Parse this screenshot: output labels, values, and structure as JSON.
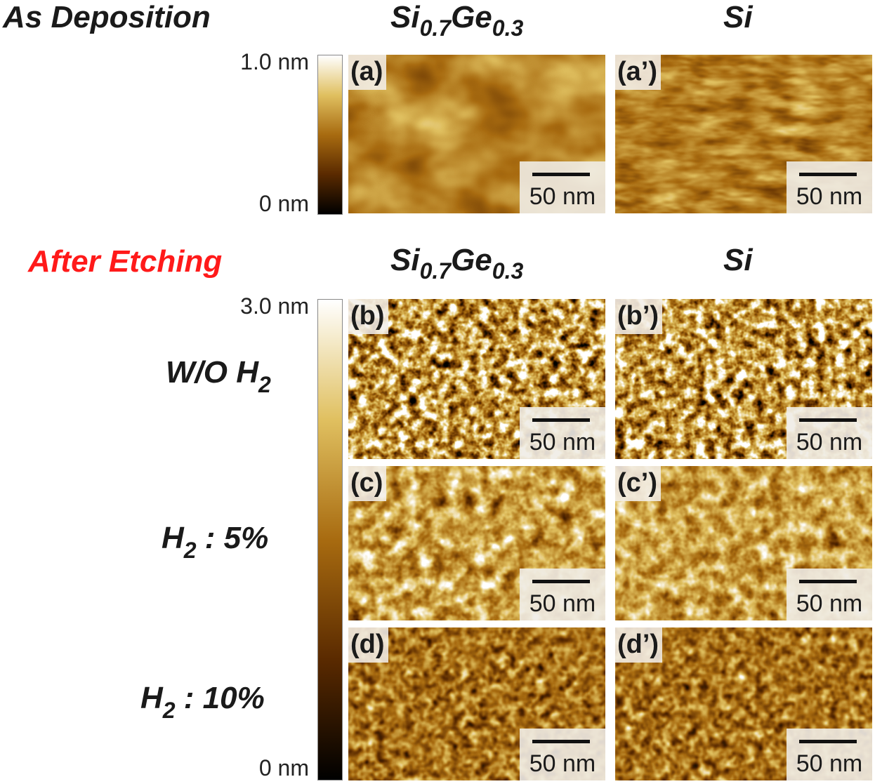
{
  "headings": {
    "as_deposition": "As Deposition",
    "after_etching": "After Etching",
    "after_etching_color": "#ff1a1a"
  },
  "columns": {
    "sige_base": "Si",
    "sige_sub1": "0.7",
    "sige_mid": "Ge",
    "sige_sub2": "0.3",
    "si": "Si"
  },
  "colorbars": {
    "top": {
      "max_label": "1.0 nm",
      "min_label": "0 nm"
    },
    "bottom": {
      "max_label": "3.0 nm",
      "min_label": "0 nm"
    },
    "colormap": [
      "#000000",
      "#5a2a00",
      "#a86b10",
      "#e0c060",
      "#ffffff"
    ]
  },
  "rows": {
    "wo_h2_prefix": "W/O H",
    "wo_h2_sub": "2",
    "h2_5_prefix": "H",
    "h2_5_sub": "2",
    "h2_5_suffix": " : 5%",
    "h2_10_prefix": "H",
    "h2_10_sub": "2",
    "h2_10_suffix": " : 10%"
  },
  "panels": {
    "a": {
      "label": "(a)",
      "scale": "50 nm"
    },
    "a2": {
      "label": "(a’)",
      "scale": "50 nm"
    },
    "b": {
      "label": "(b)",
      "scale": "50 nm"
    },
    "b2": {
      "label": "(b’)",
      "scale": "50 nm"
    },
    "c": {
      "label": "(c)",
      "scale": "50 nm"
    },
    "c2": {
      "label": "(c’)",
      "scale": "50 nm"
    },
    "d": {
      "label": "(d)",
      "scale": "50 nm"
    },
    "d2": {
      "label": "(d’)",
      "scale": "50 nm"
    }
  }
}
